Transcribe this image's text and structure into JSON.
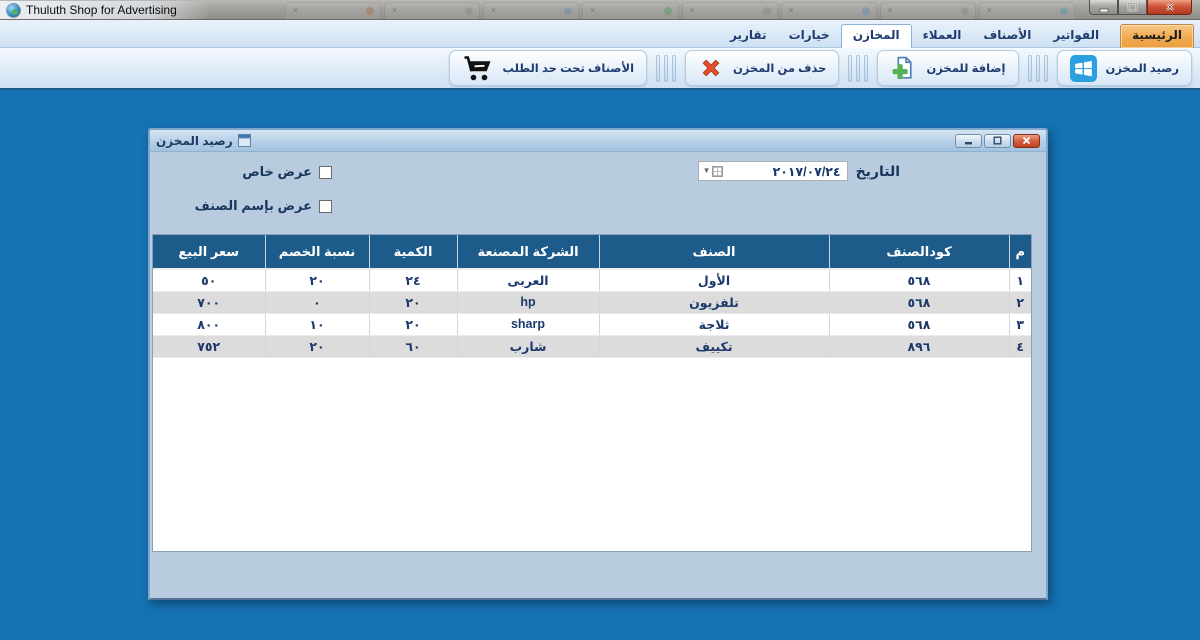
{
  "window": {
    "title": "Thuluth Shop for Advertising"
  },
  "titlebar": {
    "ghost_tabs": [
      {
        "dot": "#b06a3a"
      },
      {
        "dot": "#8a8a86"
      },
      {
        "dot": "#5a8fc0"
      },
      {
        "dot": "#3fa65a"
      },
      {
        "dot": "#8a8a86"
      },
      {
        "dot": "#5a8fc0"
      },
      {
        "dot": "#8a8a86"
      },
      {
        "dot": "#3f9faf"
      }
    ]
  },
  "tabs": {
    "items": [
      {
        "id": "home",
        "label": "الرئيسية",
        "state": "home-highlight"
      },
      {
        "id": "invoices",
        "label": "الفواتير",
        "state": ""
      },
      {
        "id": "items",
        "label": "الأصناف",
        "state": ""
      },
      {
        "id": "customers",
        "label": "العملاء",
        "state": ""
      },
      {
        "id": "stores",
        "label": "المخازن",
        "state": "selected"
      },
      {
        "id": "options",
        "label": "خيارات",
        "state": ""
      },
      {
        "id": "reports",
        "label": "تقارير",
        "state": ""
      }
    ]
  },
  "toolbar": {
    "buttons": [
      {
        "id": "store-balance",
        "label": "رصيد المخزن",
        "icon": "windows-logo-icon"
      },
      {
        "id": "add-to-store",
        "label": "إضافة للمخزن",
        "icon": "add-document-icon"
      },
      {
        "id": "delete-from-store",
        "label": "حذف من المخزن",
        "icon": "delete-x-icon"
      },
      {
        "id": "items-under-order-limit",
        "label": "الأصناف تحت حد الطلب",
        "icon": "shopping-cart-icon"
      }
    ]
  },
  "dialog": {
    "title": "رصيد المخزن",
    "date_label": "التاريخ",
    "date_value": "٢٠١٧/٠٧/٢٤",
    "checkboxes": [
      {
        "id": "special-view",
        "label": "عرض خاص",
        "checked": false
      },
      {
        "id": "view-by-item-name",
        "label": "عرض بإسم الصنف",
        "checked": false
      }
    ],
    "table": {
      "headers": [
        "م",
        "كودالصنف",
        "الصنف",
        "الشركة المصنعة",
        "الكمية",
        "نسبة الخصم",
        "سعر البيع"
      ],
      "rows": [
        [
          "١",
          "٥٦٨",
          "الأول",
          "العربى",
          "٢٤",
          "٢٠",
          "٥٠"
        ],
        [
          "٢",
          "٥٦٨",
          "تلفزيون",
          "hp",
          "٢٠",
          "٠",
          "٧٠٠"
        ],
        [
          "٣",
          "٥٦٨",
          "ثلاجة",
          "sharp",
          "٢٠",
          "١٠",
          "٨٠٠"
        ],
        [
          "٤",
          "٨٩٦",
          "تكييف",
          "شارب",
          "٦٠",
          "٢٠",
          "٧٥٢"
        ]
      ]
    }
  },
  "colors": {
    "mdi_background": "#1573B2",
    "table_header": "#1D5C8A",
    "home_tab_orange": "#F0A952",
    "close_button_red": "#D0543A",
    "row_alt_gray": "#DCDCDC",
    "text_navy": "#1B3A6B"
  }
}
